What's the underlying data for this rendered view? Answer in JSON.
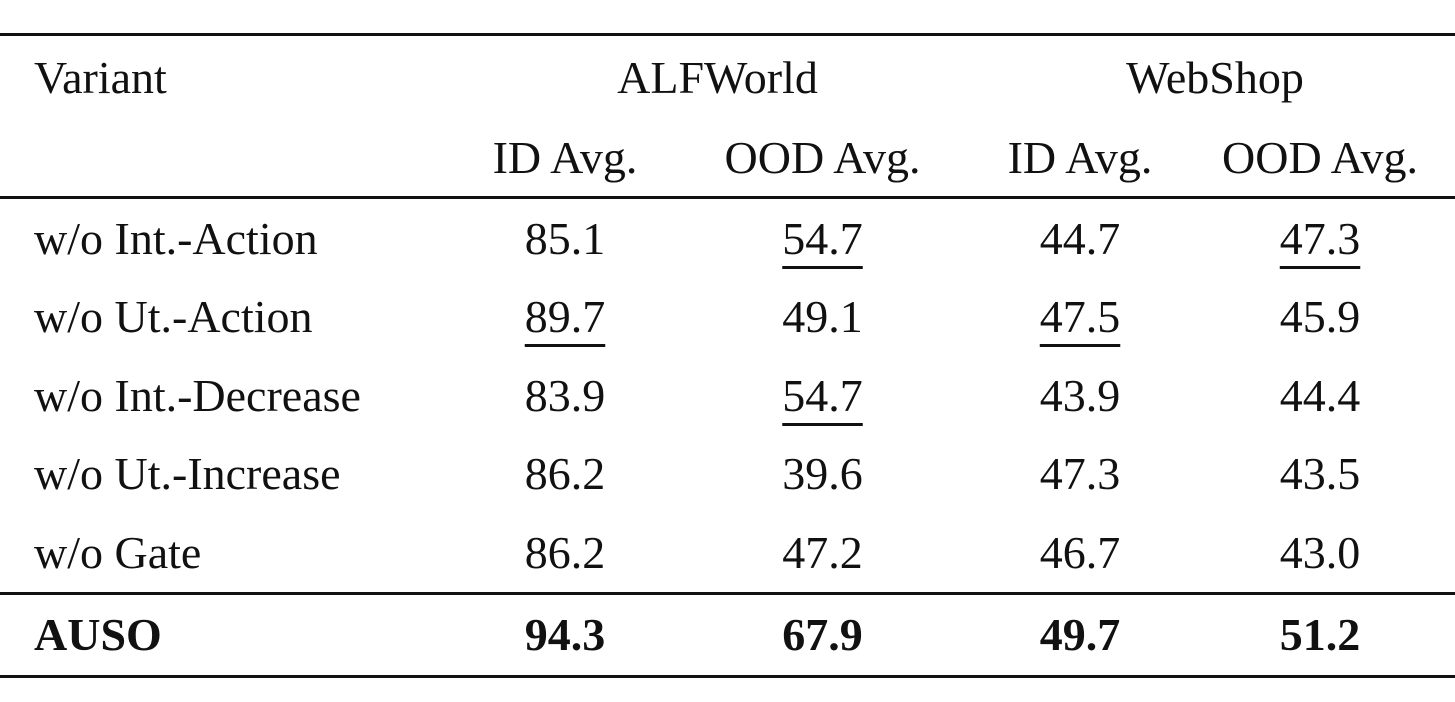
{
  "table": {
    "header": {
      "variant_label": "Variant",
      "groups": [
        "ALFWorld",
        "WebShop"
      ],
      "subcolumns": [
        "ID Avg.",
        "OOD Avg.",
        "ID Avg.",
        "OOD Avg."
      ]
    },
    "rows": [
      {
        "name": "w/o Int.-Action",
        "values": [
          "85.1",
          "54.7",
          "44.7",
          "47.3"
        ],
        "underlined": [
          false,
          true,
          false,
          true
        ]
      },
      {
        "name": "w/o Ut.-Action",
        "values": [
          "89.7",
          "49.1",
          "47.5",
          "45.9"
        ],
        "underlined": [
          true,
          false,
          true,
          false
        ]
      },
      {
        "name": "w/o Int.-Decrease",
        "values": [
          "83.9",
          "54.7",
          "43.9",
          "44.4"
        ],
        "underlined": [
          false,
          true,
          false,
          false
        ]
      },
      {
        "name": "w/o Ut.-Increase",
        "values": [
          "86.2",
          "39.6",
          "47.3",
          "43.5"
        ],
        "underlined": [
          false,
          false,
          false,
          false
        ]
      },
      {
        "name": "w/o Gate",
        "values": [
          "86.2",
          "47.2",
          "46.7",
          "43.0"
        ],
        "underlined": [
          false,
          false,
          false,
          false
        ]
      }
    ],
    "final_row": {
      "name": "AUSO",
      "values": [
        "94.3",
        "67.9",
        "49.7",
        "51.2"
      ],
      "bold": true
    }
  }
}
